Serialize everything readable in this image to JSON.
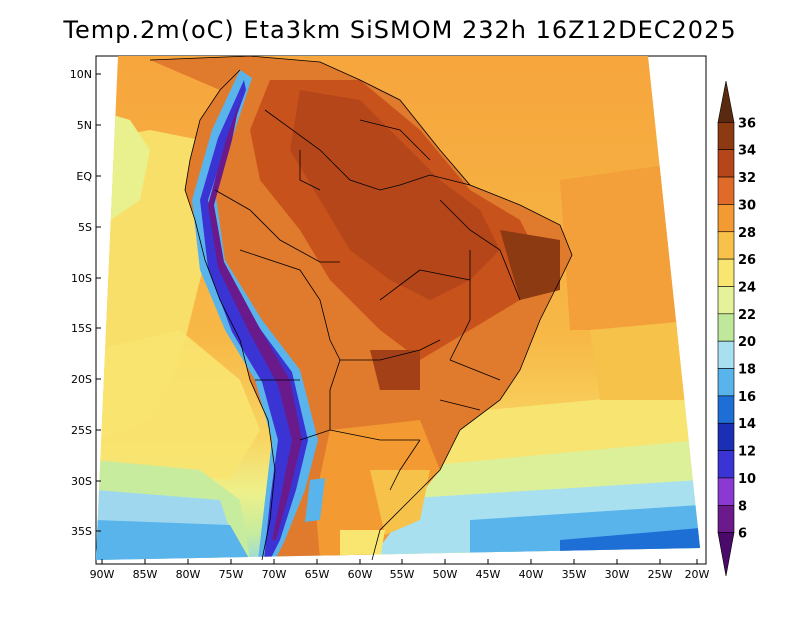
{
  "title": "Temp.2m(oC) Eta3km SiSMOM 232h 16Z12DEC2025",
  "map": {
    "variable": "2 m air temperature",
    "units": "oC",
    "lat_ticks": [
      "10N",
      "5N",
      "EQ",
      "5S",
      "10S",
      "15S",
      "20S",
      "25S",
      "30S",
      "35S"
    ],
    "lon_ticks": [
      "90W",
      "85W",
      "80W",
      "75W",
      "70W",
      "65W",
      "60W",
      "55W",
      "50W",
      "45W",
      "40W",
      "35W",
      "30W",
      "25W",
      "20W"
    ]
  },
  "colorbar": {
    "labels": [
      "36",
      "34",
      "32",
      "30",
      "28",
      "26",
      "24",
      "22",
      "20",
      "18",
      "16",
      "14",
      "12",
      "10",
      "8",
      "6"
    ],
    "colors": [
      "#5a2a10",
      "#8b3a12",
      "#b4461a",
      "#e06a2a",
      "#f39a32",
      "#f6c24a",
      "#f8e670",
      "#e6f29a",
      "#bfe89a",
      "#a8e0f0",
      "#5ab4ec",
      "#1d6fd6",
      "#1a2fb4",
      "#3b34d4",
      "#8a3ad2",
      "#6a1a8a",
      "#4a0a6a"
    ]
  }
}
